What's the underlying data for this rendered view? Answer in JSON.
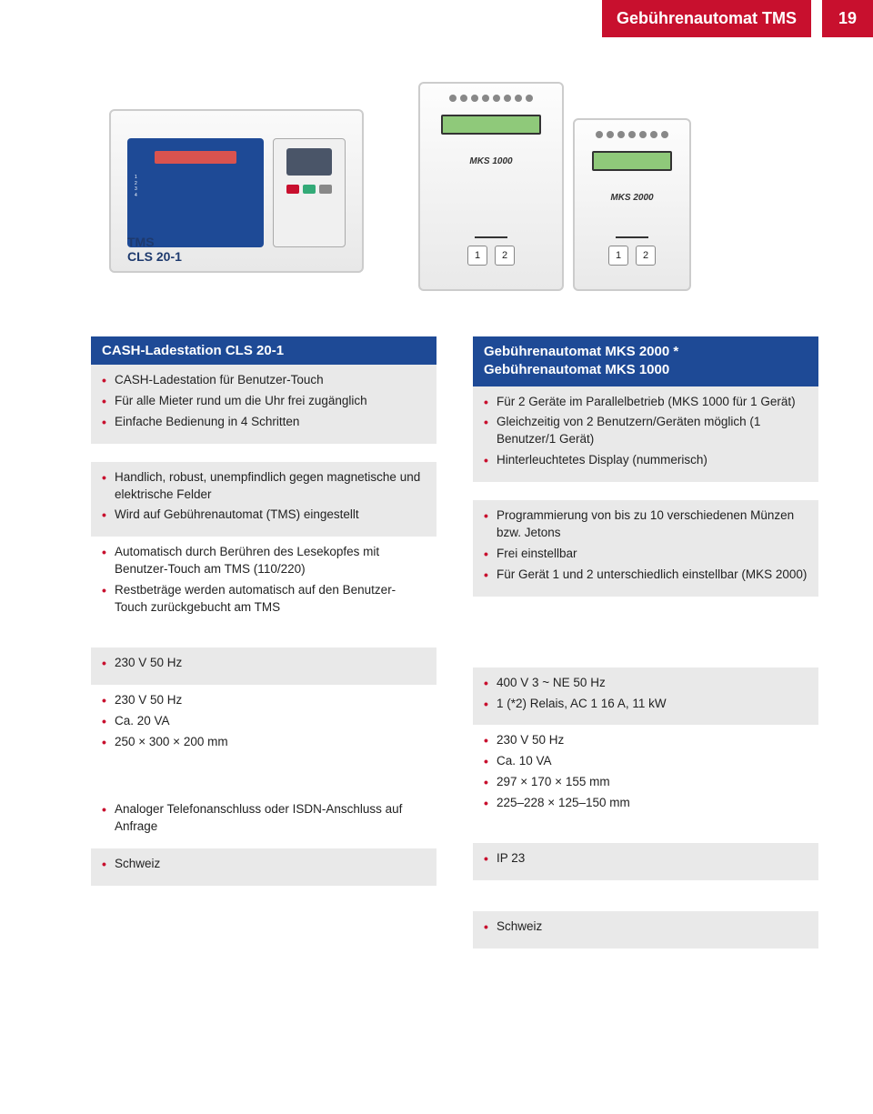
{
  "colors": {
    "red": "#c8102e",
    "blue": "#1e4a96",
    "shade": "#e9e9e9",
    "text": "#222222",
    "white": "#ffffff"
  },
  "header": {
    "title": "Gebührenautomat TMS",
    "page": "19"
  },
  "devices": {
    "cls_label": "TMS\nCLS 20-1",
    "mks1000_label": "MKS 1000",
    "mks2000_label": "MKS 2000"
  },
  "left": {
    "title": "CASH-Ladestation CLS 20-1",
    "block1": [
      "CASH-Ladestation für Benutzer-Touch",
      "Für alle Mieter rund um die Uhr frei zugänglich",
      "Einfache Bedienung in 4 Schritten"
    ],
    "block2a": [
      "Handlich, robust, unempfindlich gegen magnetische und elektrische Felder",
      "Wird auf Gebührenautomat (TMS) eingestellt"
    ],
    "block2b": [
      "Automatisch durch Berühren des Lesekopfes mit Benutzer-Touch am TMS (110/220)",
      "Restbeträge werden automatisch auf den Benutzer-Touch zurückgebucht am TMS"
    ],
    "block3a": [
      "230 V 50 Hz"
    ],
    "block3b": [
      "230 V 50 Hz",
      "Ca. 20 VA",
      "250 × 300 × 200 mm"
    ],
    "block4a": [
      "Analoger Telefonanschluss oder ISDN-Anschluss auf Anfrage"
    ],
    "block4b": [
      "Schweiz"
    ]
  },
  "right": {
    "title_l1": "Gebührenautomat MKS 2000 *",
    "title_l2": "Gebührenautomat MKS 1000",
    "block1": [
      "Für 2 Geräte im Parallelbetrieb (MKS 1000 für 1 Gerät)",
      "Gleichzeitig von 2 Benutzern/Geräten möglich (1 Benutzer/1 Gerät)",
      "Hinterleuchtetes Display (nummerisch)"
    ],
    "block2a": [
      "Programmierung von bis zu 10 verschiedenen Münzen bzw. Jetons",
      "Frei einstellbar",
      "Für Gerät 1 und 2 unterschiedlich einstellbar (MKS 2000)"
    ],
    "block3a": [
      "400 V 3 ~ NE 50 Hz",
      "1 (*2) Relais, AC 1 16 A, 11 kW"
    ],
    "block3b": [
      "230 V 50 Hz",
      "Ca. 10 VA",
      "297 × 170 × 155 mm",
      "225–228 × 125–150 mm"
    ],
    "block4a": [
      "IP 23"
    ],
    "block4b": [
      "Schweiz"
    ]
  }
}
